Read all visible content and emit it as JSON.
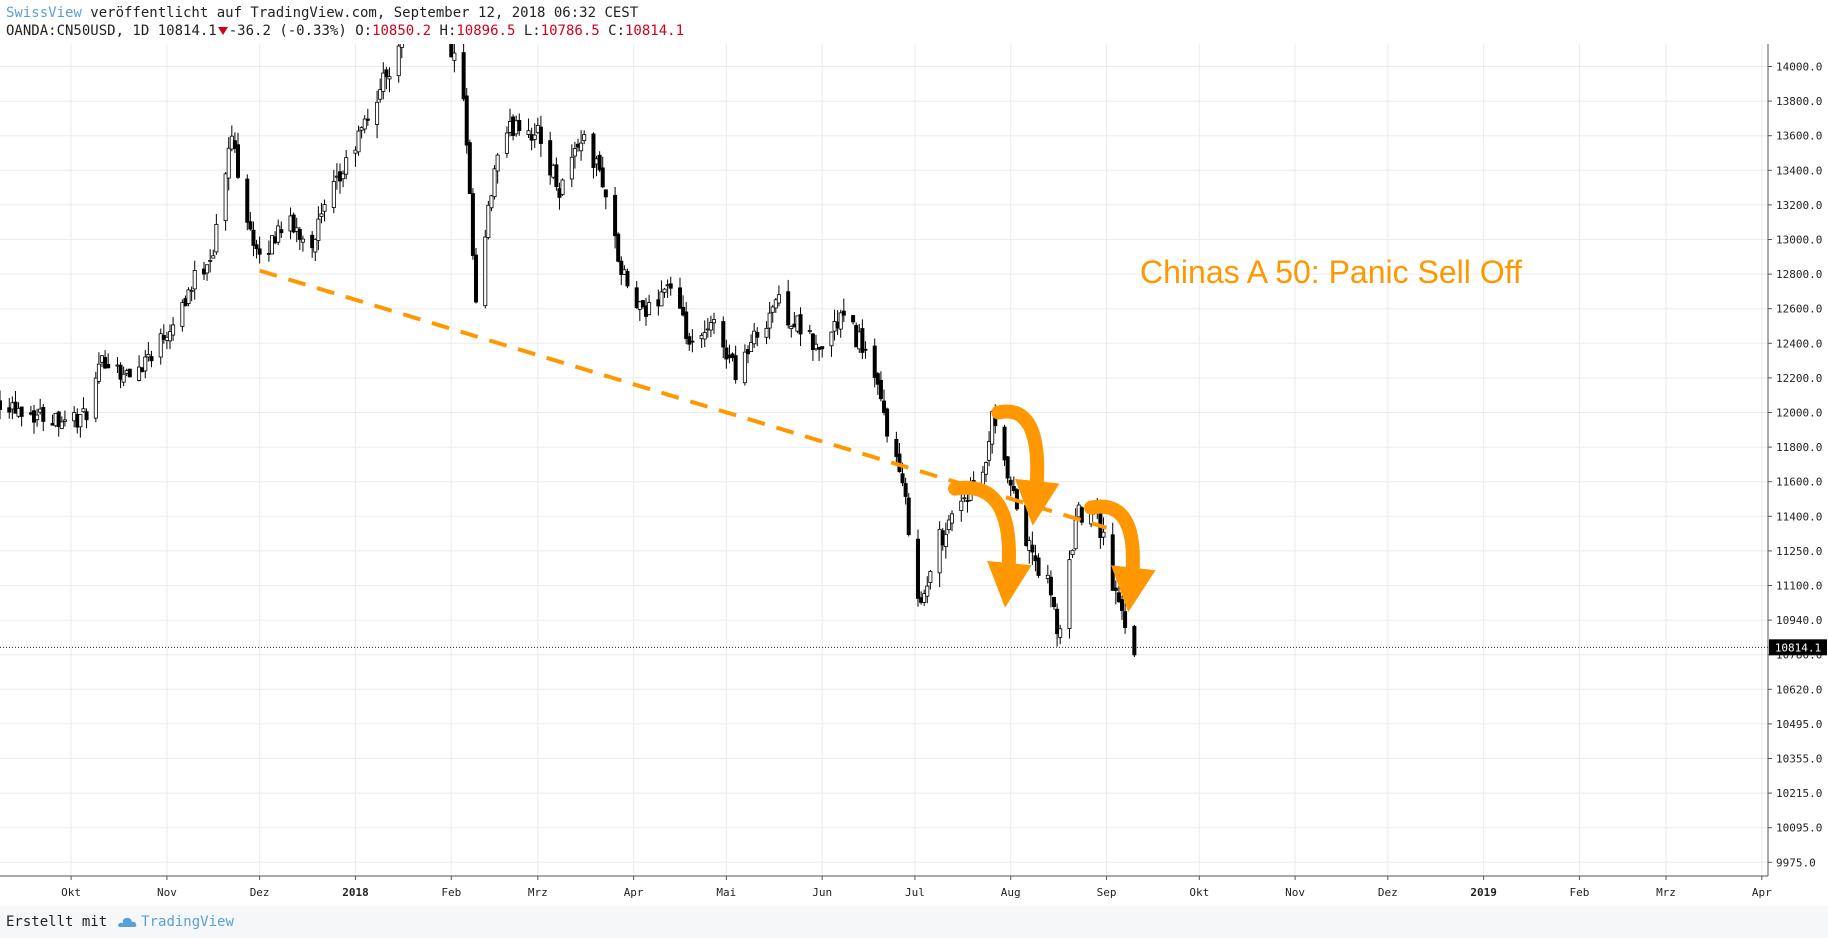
{
  "header": {
    "author": "SwissView",
    "published_text": " veröffentlicht auf TradingView.com, September 12, 2018 06:32 CEST",
    "symbol": "OANDA:CN50USD, 1D",
    "last": "10814.1",
    "change": "-36.2 (-0.33%)",
    "open_label": "O:",
    "open": "10850.2",
    "high_label": "H:",
    "high": "10896.5",
    "low_label": "L:",
    "low": "10786.5",
    "close_label": "C:",
    "close": "10814.1",
    "down_arrow_icon": "triangle-down-icon"
  },
  "footer": {
    "created_with": "Erstellt mit",
    "brand": "TradingView",
    "logo_icon": "tradingview-cloud-icon"
  },
  "colors": {
    "candle": "#000000",
    "annotation": "#ff9800",
    "grid": "#e8e8e8",
    "price_label_bg": "#000000",
    "price_down": "#d0021b"
  },
  "chart_data": {
    "type": "candlestick",
    "title": "",
    "annotation_text": "Chinas A 50: Panic Sell Off",
    "current_price_label": "10814.1",
    "current_price": 10814.1,
    "y_ticks": [
      14000.0,
      13800.0,
      13600.0,
      13400.0,
      13200.0,
      13000.0,
      12800.0,
      12600.0,
      12400.0,
      12200.0,
      12000.0,
      11800.0,
      11600.0,
      11400.0,
      11250.0,
      11100.0,
      10940.0,
      10780.0,
      10620.0,
      10495.0,
      10355.0,
      10215.0,
      10095.0,
      9975.0
    ],
    "y_tick_labels": [
      "14000.0",
      "13800.0",
      "13600.0",
      "13400.0",
      "13200.0",
      "13000.0",
      "12800.0",
      "12600.0",
      "12400.0",
      "12200.0",
      "12000.0",
      "11800.0",
      "11600.0",
      "11400.0",
      "11250.0",
      "11100.0",
      "10940.0",
      "10780.0",
      "10620.0",
      "10495.0",
      "10355.0",
      "10215.0",
      "10095.0",
      "9975.0"
    ],
    "x_ticks": [
      {
        "label": "Okt",
        "date": "2017-10-01",
        "bold": false
      },
      {
        "label": "Nov",
        "date": "2017-11-01",
        "bold": false
      },
      {
        "label": "Dez",
        "date": "2017-12-01",
        "bold": false
      },
      {
        "label": "2018",
        "date": "2018-01-01",
        "bold": true
      },
      {
        "label": "Feb",
        "date": "2018-02-01",
        "bold": false
      },
      {
        "label": "Mrz",
        "date": "2018-03-01",
        "bold": false
      },
      {
        "label": "Apr",
        "date": "2018-04-01",
        "bold": false
      },
      {
        "label": "Mai",
        "date": "2018-05-01",
        "bold": false
      },
      {
        "label": "Jun",
        "date": "2018-06-01",
        "bold": false
      },
      {
        "label": "Jul",
        "date": "2018-07-01",
        "bold": false
      },
      {
        "label": "Aug",
        "date": "2018-08-01",
        "bold": false
      },
      {
        "label": "Sep",
        "date": "2018-09-01",
        "bold": false
      },
      {
        "label": "Okt",
        "date": "2018-10-01",
        "bold": false
      },
      {
        "label": "Nov",
        "date": "2018-11-01",
        "bold": false
      },
      {
        "label": "Dez",
        "date": "2018-12-01",
        "bold": false
      },
      {
        "label": "2019",
        "date": "2019-01-01",
        "bold": true
      },
      {
        "label": "Feb",
        "date": "2019-02-01",
        "bold": false
      },
      {
        "label": "Mrz",
        "date": "2019-03-01",
        "bold": false
      },
      {
        "label": "Apr",
        "date": "2019-04-01",
        "bold": false
      }
    ],
    "x_range": [
      "2017-09-08",
      "2019-04-03"
    ],
    "close_path": [
      [
        "2017-09-08",
        12080
      ],
      [
        "2017-09-20",
        11990
      ],
      [
        "2017-10-05",
        11960
      ],
      [
        "2017-10-12",
        12320
      ],
      [
        "2017-10-20",
        12200
      ],
      [
        "2017-10-31",
        12450
      ],
      [
        "2017-11-08",
        12700
      ],
      [
        "2017-11-16",
        12950
      ],
      [
        "2017-11-22",
        13600
      ],
      [
        "2017-11-27",
        13150
      ],
      [
        "2017-12-01",
        12850
      ],
      [
        "2017-12-08",
        13100
      ],
      [
        "2017-12-18",
        13000
      ],
      [
        "2017-12-27",
        13350
      ],
      [
        "2018-01-05",
        13700
      ],
      [
        "2018-01-12",
        14000
      ],
      [
        "2018-01-18",
        14300
      ],
      [
        "2018-01-25",
        14500
      ],
      [
        "2018-02-01",
        14100
      ],
      [
        "2018-02-05",
        13800
      ],
      [
        "2018-02-09",
        12600
      ],
      [
        "2018-02-15",
        13400
      ],
      [
        "2018-02-22",
        13700
      ],
      [
        "2018-03-01",
        13600
      ],
      [
        "2018-03-08",
        13300
      ],
      [
        "2018-03-15",
        13600
      ],
      [
        "2018-03-22",
        13350
      ],
      [
        "2018-03-28",
        12800
      ],
      [
        "2018-04-04",
        12550
      ],
      [
        "2018-04-12",
        12750
      ],
      [
        "2018-04-20",
        12350
      ],
      [
        "2018-04-27",
        12500
      ],
      [
        "2018-05-04",
        12250
      ],
      [
        "2018-05-11",
        12450
      ],
      [
        "2018-05-17",
        12650
      ],
      [
        "2018-05-24",
        12500
      ],
      [
        "2018-05-31",
        12350
      ],
      [
        "2018-06-07",
        12550
      ],
      [
        "2018-06-14",
        12400
      ],
      [
        "2018-06-20",
        12050
      ],
      [
        "2018-06-26",
        11650
      ],
      [
        "2018-07-03",
        11000
      ],
      [
        "2018-07-09",
        11300
      ],
      [
        "2018-07-16",
        11500
      ],
      [
        "2018-07-23",
        11600
      ],
      [
        "2018-07-26",
        11950
      ],
      [
        "2018-08-01",
        11550
      ],
      [
        "2018-08-07",
        11250
      ],
      [
        "2018-08-13",
        11100
      ],
      [
        "2018-08-17",
        10850
      ],
      [
        "2018-08-22",
        11400
      ],
      [
        "2018-08-28",
        11500
      ],
      [
        "2018-09-03",
        11100
      ],
      [
        "2018-09-10",
        10814
      ]
    ],
    "trendline": {
      "from": [
        "2017-12-01",
        12820
      ],
      "to": [
        "2018-09-01",
        11350
      ],
      "style": "dashed",
      "color": "#ff9800"
    },
    "arrows": [
      {
        "name": "arrow-1",
        "from": [
          "2018-07-14",
          11560
        ],
        "to": [
          "2018-07-31",
          11120
        ]
      },
      {
        "name": "arrow-2",
        "from": [
          "2018-07-28",
          12000
        ],
        "to": [
          "2018-08-09",
          11500
        ]
      },
      {
        "name": "arrow-3",
        "from": [
          "2018-08-27",
          11450
        ],
        "to": [
          "2018-09-09",
          11100
        ]
      }
    ],
    "grid": true,
    "legend": "none"
  }
}
